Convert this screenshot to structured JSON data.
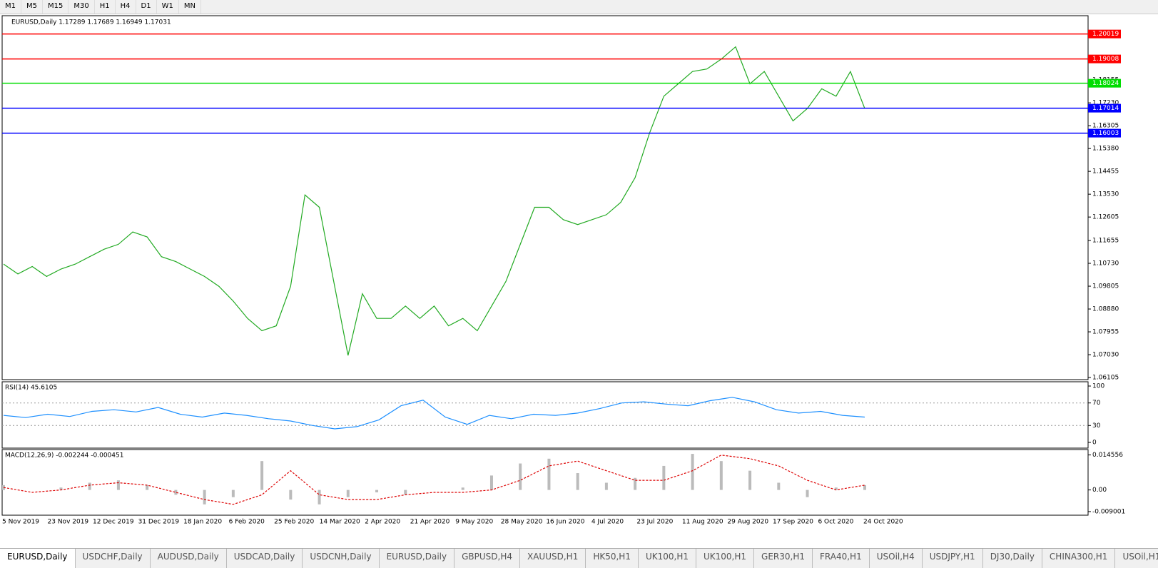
{
  "toolbar": {
    "timeframes": [
      "M1",
      "M5",
      "M15",
      "M30",
      "H1",
      "H4",
      "D1",
      "W1",
      "MN"
    ]
  },
  "chart": {
    "header": "EURUSD,Daily  1.17289 1.17689 1.16949 1.17031",
    "price": {
      "ylim": [
        1.0602,
        1.2076
      ],
      "color": "#22aa22",
      "yticks": [
        1.18155,
        {
          "value": 1.1723,
          "label": "1.17230"
        },
        1.16305,
        {
          "value": 1.1538,
          "label": "1.15380"
        },
        1.14455,
        {
          "value": 1.1353,
          "label": "1.13530"
        },
        1.12605,
        1.11655,
        {
          "value": 1.1073,
          "label": "1.10730"
        },
        1.09805,
        {
          "value": 1.0888,
          "label": "1.08880"
        },
        1.07955,
        {
          "value": 1.0703,
          "label": "1.07030"
        },
        1.06105
      ],
      "closes": [
        1.107,
        1.103,
        1.106,
        1.102,
        1.105,
        1.107,
        1.11,
        1.113,
        1.115,
        1.12,
        1.118,
        1.11,
        1.108,
        1.105,
        1.102,
        1.098,
        1.092,
        1.085,
        1.08,
        1.082,
        1.098,
        1.135,
        1.13,
        1.1,
        1.07,
        1.095,
        1.085,
        1.085,
        1.09,
        1.085,
        1.09,
        1.082,
        1.085,
        1.08,
        1.09,
        1.1,
        1.115,
        1.13,
        1.13,
        1.125,
        1.123,
        1.125,
        1.127,
        1.132,
        1.142,
        1.16,
        1.175,
        1.18,
        1.185,
        1.186,
        1.19,
        1.195,
        1.18,
        1.185,
        1.175,
        1.165,
        1.17,
        1.178,
        1.175,
        1.185,
        1.17
      ]
    },
    "levels": [
      {
        "value": 1.20019,
        "color": "#ff0000"
      },
      {
        "value": 1.19008,
        "color": "#ff0000"
      },
      {
        "value": 1.18024,
        "color": "#00dd00"
      },
      {
        "value": 1.17014,
        "color": "#0000ff"
      },
      {
        "value": 1.16003,
        "color": "#0000ff"
      }
    ],
    "dates": [
      "5 Nov 2019",
      "23 Nov 2019",
      "12 Dec 2019",
      "31 Dec 2019",
      "18 Jan 2020",
      "6 Feb 2020",
      "25 Feb 2020",
      "14 Mar 2020",
      "2 Apr 2020",
      "21 Apr 2020",
      "9 May 2020",
      "28 May 2020",
      "16 Jun 2020",
      "4 Jul 2020",
      "23 Jul 2020",
      "11 Aug 2020",
      "29 Aug 2020",
      "17 Sep 2020",
      "6 Oct 2020",
      "24 Oct 2020"
    ],
    "rsi": {
      "label": "RSI(14) 45.6105",
      "ylim": [
        0,
        100
      ],
      "yticks": [
        100,
        70,
        30,
        0
      ],
      "levels": [
        70,
        30
      ],
      "color": "#1e90ff",
      "values": [
        48,
        44,
        50,
        46,
        55,
        58,
        54,
        62,
        50,
        45,
        52,
        48,
        42,
        38,
        30,
        24,
        28,
        40,
        65,
        75,
        45,
        32,
        48,
        42,
        50,
        48,
        52,
        60,
        70,
        72,
        68,
        65,
        74,
        80,
        72,
        58,
        52,
        55,
        48,
        45
      ]
    },
    "macd": {
      "label": "MACD(12,26,9) -0.002244 -0.000451",
      "ylim": [
        -0.0105,
        0.0168
      ],
      "yticks": [
        0.014556,
        {
          "value": 0,
          "label": "0.00"
        },
        -0.009001
      ],
      "histogram": [
        0.002,
        0,
        0.001,
        0.003,
        0.004,
        0.002,
        -0.002,
        -0.006,
        -0.003,
        0.012,
        -0.004,
        -0.006,
        -0.003,
        -0.001,
        -0.002,
        0,
        0.001,
        0.006,
        0.011,
        0.013,
        0.007,
        0.003,
        0.005,
        0.01,
        0.015,
        0.012,
        0.008,
        0.003,
        -0.003,
        0.001,
        0.002
      ],
      "signal": [
        0.001,
        -0.001,
        0,
        0.002,
        0.003,
        0.002,
        -0.001,
        -0.004,
        -0.006,
        -0.002,
        0.008,
        -0.002,
        -0.004,
        -0.004,
        -0.002,
        -0.001,
        -0.001,
        0,
        0.004,
        0.01,
        0.012,
        0.008,
        0.004,
        0.004,
        0.008,
        0.0145,
        0.013,
        0.01,
        0.004,
        0,
        0.002
      ]
    }
  },
  "tabs": [
    "EURUSD,Daily",
    "USDCHF,Daily",
    "AUDUSD,Daily",
    "USDCAD,Daily",
    "USDCNH,Daily",
    "EURUSD,Daily",
    "GBPUSD,H4",
    "XAUUSD,H1",
    "HK50,H1",
    "UK100,H1",
    "UK100,H1",
    "GER30,H1",
    "FRA40,H1",
    "USOil,H4",
    "USDJPY,H1",
    "DJ30,Daily",
    "CHINA300,H1",
    "USOil,H1"
  ]
}
